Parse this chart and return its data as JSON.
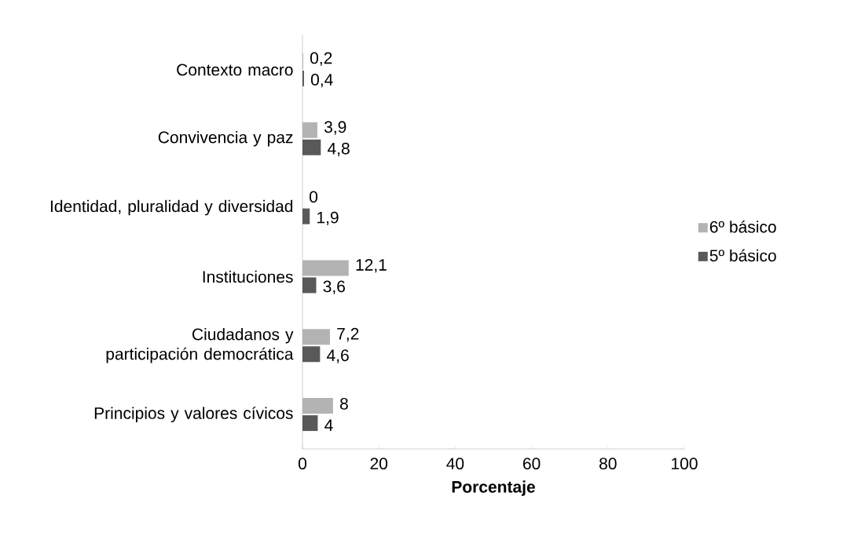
{
  "chart_data": {
    "type": "bar",
    "orientation": "horizontal",
    "categories": [
      "Contexto macro",
      "Convivencia y paz",
      "Identidad, pluralidad y diversidad",
      "Instituciones",
      "Ciudadanos y participación democrática",
      "Principios y valores cívicos"
    ],
    "series": [
      {
        "name": "6º básico",
        "color": "#b3b3b3",
        "values": [
          0.2,
          3.9,
          0,
          12.1,
          7.2,
          8
        ],
        "value_labels": [
          "0,2",
          "3,9",
          "0",
          "12,1",
          "7,2",
          "8"
        ]
      },
      {
        "name": "5º básico",
        "color": "#595959",
        "values": [
          0.4,
          4.8,
          1.9,
          3.6,
          4.6,
          4
        ],
        "value_labels": [
          "0,4",
          "4,8",
          "1,9",
          "3,6",
          "4,6",
          "4"
        ]
      }
    ],
    "xlabel": "Porcentaje",
    "xlim": [
      0,
      100
    ],
    "xticks": [
      0,
      20,
      40,
      60,
      80,
      100
    ],
    "legend": "right",
    "grid": false
  }
}
